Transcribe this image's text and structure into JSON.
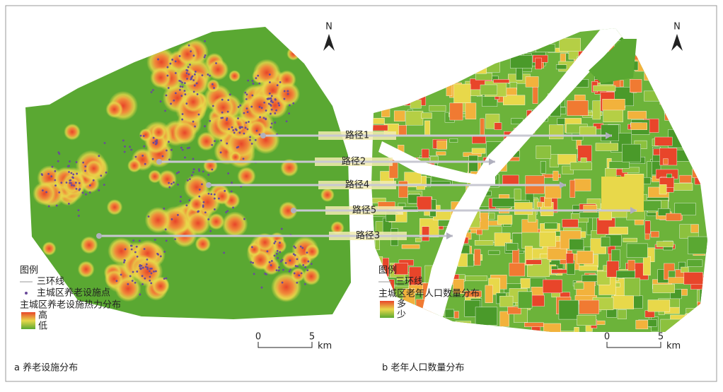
{
  "panels": [
    {
      "north": "N",
      "legend": {
        "title": "图例",
        "items": [
          "三环线",
          "主城区养老设施点"
        ],
        "gradient_title": "主城区养老设施热力分布",
        "high": "高",
        "low": "低"
      },
      "scale": {
        "ticks": [
          "0",
          "5"
        ],
        "unit": "km"
      },
      "caption": "a 养老设施分布"
    },
    {
      "north": "N",
      "legend": {
        "title": "图例",
        "items": [
          "三环线"
        ],
        "gradient_title": "主城区老年人口数量分布",
        "high": "多",
        "low": "少"
      },
      "scale": {
        "ticks": [
          "0",
          "5"
        ],
        "unit": "km"
      },
      "caption": "b 老年人口数量分布"
    }
  ],
  "routes": [
    "路径1",
    "路径2",
    "路径4",
    "路径5",
    "路径3"
  ]
}
